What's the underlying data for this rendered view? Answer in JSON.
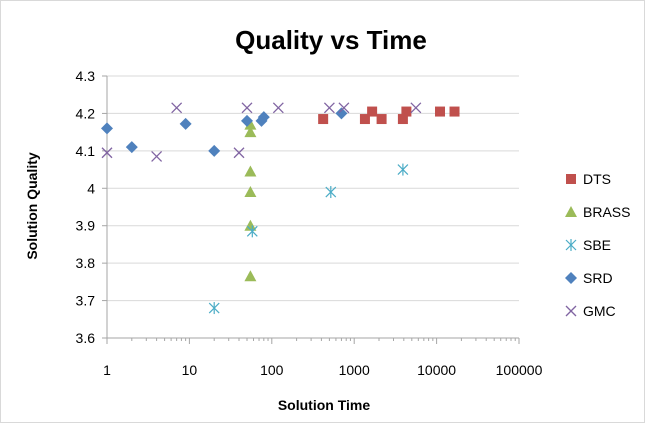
{
  "chart_data": {
    "type": "scatter",
    "title": "Quality vs Time",
    "xlabel": "Solution Time",
    "ylabel": "Solution Quality",
    "x_scale": "log",
    "xlim": [
      1,
      100000
    ],
    "ylim": [
      3.6,
      4.3
    ],
    "x_ticks": [
      "1",
      "10",
      "100",
      "1000",
      "10000",
      "100000"
    ],
    "y_ticks": [
      "3.6",
      "3.7",
      "3.8",
      "3.9",
      "4",
      "4.1",
      "4.2",
      "4.3"
    ],
    "grid": "horizontal",
    "legend_position": "right",
    "series": [
      {
        "name": "DTS",
        "color": "#c0504d",
        "marker": "square",
        "points": [
          [
            420,
            4.185
          ],
          [
            1350,
            4.185
          ],
          [
            1650,
            4.205
          ],
          [
            2150,
            4.185
          ],
          [
            3900,
            4.185
          ],
          [
            4300,
            4.205
          ],
          [
            11000,
            4.205
          ],
          [
            16500,
            4.205
          ]
        ]
      },
      {
        "name": "BRASS",
        "color": "#9bbb59",
        "marker": "triangle",
        "points": [
          [
            55,
            4.17
          ],
          [
            55,
            4.15
          ],
          [
            55,
            4.045
          ],
          [
            55,
            3.99
          ],
          [
            55,
            3.9
          ],
          [
            55,
            3.765
          ]
        ]
      },
      {
        "name": "SBE",
        "color": "#4bacc6",
        "marker": "asterisk",
        "points": [
          [
            20,
            3.68
          ],
          [
            58,
            3.885
          ],
          [
            520,
            3.99
          ],
          [
            3900,
            4.05
          ]
        ]
      },
      {
        "name": "SRD",
        "color": "#4f81bd",
        "marker": "diamond",
        "points": [
          [
            1,
            4.16
          ],
          [
            2,
            4.11
          ],
          [
            9,
            4.172
          ],
          [
            20,
            4.1
          ],
          [
            50,
            4.18
          ],
          [
            75,
            4.18
          ],
          [
            80,
            4.19
          ],
          [
            700,
            4.2
          ]
        ]
      },
      {
        "name": "GMC",
        "color": "#8064a2",
        "marker": "x",
        "points": [
          [
            1,
            4.095
          ],
          [
            4,
            4.085
          ],
          [
            7,
            4.215
          ],
          [
            40,
            4.095
          ],
          [
            50,
            4.215
          ],
          [
            120,
            4.215
          ],
          [
            500,
            4.215
          ],
          [
            750,
            4.215
          ],
          [
            5600,
            4.215
          ]
        ]
      }
    ]
  }
}
